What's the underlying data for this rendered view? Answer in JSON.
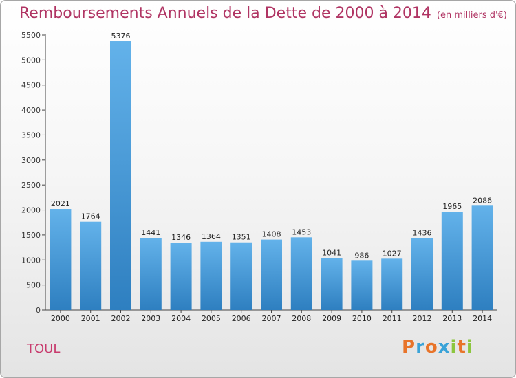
{
  "title": "Remboursements Annuels de la Dette de 2000 à 2014",
  "unit": "(en milliers d'€)",
  "city": "TOUL",
  "logo": {
    "text": "Proxiti",
    "letters": [
      {
        "ch": "P",
        "color": "#e8742a"
      },
      {
        "ch": "r",
        "color": "#3aa3d8"
      },
      {
        "ch": "o",
        "color": "#e8742a"
      },
      {
        "ch": "x",
        "color": "#3aa3d8"
      },
      {
        "ch": "i",
        "color": "#8cc63f"
      },
      {
        "ch": "t",
        "color": "#e8742a"
      },
      {
        "ch": "i",
        "color": "#8cc63f"
      }
    ]
  },
  "colors": {
    "title": "#b03463",
    "bar_top": "#63b2ea",
    "bar_bottom": "#2e7fc0",
    "axis": "#444444"
  },
  "chart_data": {
    "type": "bar",
    "title": "Remboursements Annuels de la Dette de 2000 à 2014",
    "ylim": [
      0,
      5500
    ],
    "yticks": [
      0,
      500,
      1000,
      1500,
      2000,
      2500,
      3000,
      3500,
      4000,
      4500,
      5000,
      5500
    ],
    "categories": [
      "2000",
      "2001",
      "2002",
      "2003",
      "2004",
      "2005",
      "2006",
      "2007",
      "2008",
      "2009",
      "2010",
      "2011",
      "2012",
      "2013",
      "2014"
    ],
    "values": [
      2021,
      1764,
      5376,
      1441,
      1346,
      1364,
      1351,
      1408,
      1453,
      1041,
      986,
      1027,
      1436,
      1965,
      2086
    ],
    "grid": false,
    "legend": "none"
  }
}
